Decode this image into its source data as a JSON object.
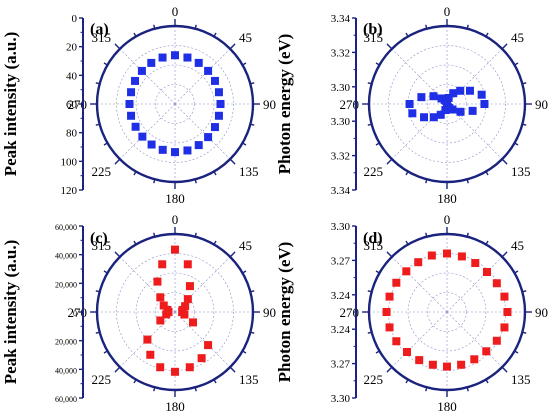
{
  "colors": {
    "axis": "#1a237e",
    "grid": "#8a8fc7",
    "blue": "#1f2fe6",
    "red": "#ee1c1c"
  },
  "chart_data": [
    {
      "type": "polar-scatter",
      "panel_label": "(a)",
      "ylabel": "Peak intensity (a.u.)",
      "rlim": [
        0,
        120
      ],
      "radial_ticks": [
        "0",
        "20",
        "40",
        "60",
        "80",
        "100",
        "120"
      ],
      "angle_labels": [
        "0",
        "45",
        "90",
        "135",
        "180",
        "225",
        "270",
        "315"
      ],
      "color": "blue",
      "points": [
        {
          "theta": 0,
          "r": 75
        },
        {
          "theta": 15,
          "r": 74
        },
        {
          "theta": 30,
          "r": 73
        },
        {
          "theta": 45,
          "r": 72
        },
        {
          "theta": 60,
          "r": 71
        },
        {
          "theta": 75,
          "r": 70
        },
        {
          "theta": 90,
          "r": 70
        },
        {
          "theta": 105,
          "r": 70
        },
        {
          "theta": 120,
          "r": 71
        },
        {
          "theta": 135,
          "r": 72
        },
        {
          "theta": 150,
          "r": 73
        },
        {
          "theta": 165,
          "r": 74
        },
        {
          "theta": 180,
          "r": 74
        },
        {
          "theta": 195,
          "r": 73
        },
        {
          "theta": 210,
          "r": 72
        },
        {
          "theta": 225,
          "r": 71
        },
        {
          "theta": 240,
          "r": 70
        },
        {
          "theta": 255,
          "r": 70
        },
        {
          "theta": 270,
          "r": 70
        },
        {
          "theta": 285,
          "r": 70
        },
        {
          "theta": 300,
          "r": 71
        },
        {
          "theta": 315,
          "r": 72
        },
        {
          "theta": 330,
          "r": 73
        },
        {
          "theta": 345,
          "r": 74
        }
      ]
    },
    {
      "type": "polar-scatter",
      "panel_label": "(b)",
      "ylabel": "Photon energy (eV)",
      "rlim": [
        3.295,
        3.345
      ],
      "radial_ticks": [
        "3.34",
        "3.32",
        "3.30",
        "3.30",
        "3.32",
        "3.34"
      ],
      "angle_labels": [
        "0",
        "45",
        "90",
        "135",
        "180",
        "225",
        "270",
        "315"
      ],
      "color": "blue",
      "points": [
        {
          "theta": 0,
          "r": 3.297
        },
        {
          "theta": 15,
          "r": 3.299
        },
        {
          "theta": 30,
          "r": 3.303
        },
        {
          "theta": 45,
          "r": 3.307
        },
        {
          "theta": 60,
          "r": 3.312
        },
        {
          "theta": 75,
          "r": 3.318
        },
        {
          "theta": 90,
          "r": 3.319
        },
        {
          "theta": 105,
          "r": 3.312
        },
        {
          "theta": 120,
          "r": 3.305
        },
        {
          "theta": 135,
          "r": 3.3
        },
        {
          "theta": 150,
          "r": 3.298
        },
        {
          "theta": 165,
          "r": 3.297
        },
        {
          "theta": 180,
          "r": 3.297
        },
        {
          "theta": 195,
          "r": 3.299
        },
        {
          "theta": 210,
          "r": 3.303
        },
        {
          "theta": 225,
          "r": 3.307
        },
        {
          "theta": 240,
          "r": 3.312
        },
        {
          "theta": 255,
          "r": 3.318
        },
        {
          "theta": 270,
          "r": 3.319
        },
        {
          "theta": 285,
          "r": 3.312
        },
        {
          "theta": 300,
          "r": 3.305
        },
        {
          "theta": 315,
          "r": 3.3
        },
        {
          "theta": 330,
          "r": 3.298
        },
        {
          "theta": 345,
          "r": 3.297
        }
      ]
    },
    {
      "type": "polar-scatter",
      "panel_label": "(c)",
      "ylabel": "Peak intensity (a.u.)",
      "rlim": [
        0,
        60000
      ],
      "radial_ticks": [
        "60,000",
        "40,000",
        "20,000",
        "0",
        "20,000",
        "40,000",
        "60,000"
      ],
      "angle_labels": [
        "0",
        "45",
        "90",
        "135",
        "180",
        "225",
        "270",
        "315"
      ],
      "color": "red",
      "points": [
        {
          "theta": 0,
          "r": 48000
        },
        {
          "theta": 15,
          "r": 38000
        },
        {
          "theta": 30,
          "r": 23000
        },
        {
          "theta": 45,
          "r": 14000
        },
        {
          "theta": 60,
          "r": 9000
        },
        {
          "theta": 75,
          "r": 6000
        },
        {
          "theta": 90,
          "r": 5500
        },
        {
          "theta": 105,
          "r": 7500
        },
        {
          "theta": 120,
          "r": 16000
        },
        {
          "theta": 135,
          "r": 36000
        },
        {
          "theta": 150,
          "r": 41000
        },
        {
          "theta": 165,
          "r": 44000
        },
        {
          "theta": 180,
          "r": 46000
        },
        {
          "theta": 195,
          "r": 44000
        },
        {
          "theta": 210,
          "r": 38000
        },
        {
          "theta": 225,
          "r": 30000
        },
        {
          "theta": 240,
          "r": 13000
        },
        {
          "theta": 255,
          "r": 7000
        },
        {
          "theta": 270,
          "r": 5000
        },
        {
          "theta": 285,
          "r": 6000
        },
        {
          "theta": 300,
          "r": 10000
        },
        {
          "theta": 315,
          "r": 16000
        },
        {
          "theta": 330,
          "r": 27000
        },
        {
          "theta": 345,
          "r": 38000
        }
      ]
    },
    {
      "type": "polar-scatter",
      "panel_label": "(d)",
      "ylabel": "Photon energy (eV)",
      "rlim": [
        3.225,
        3.305
      ],
      "radial_ticks": [
        "3.30",
        "3.27",
        "3.24",
        "3.24",
        "3.27",
        "3.30"
      ],
      "angle_labels": [
        "0",
        "45",
        "90",
        "135",
        "180",
        "225",
        "270",
        "315"
      ],
      "color": "red",
      "points": [
        {
          "theta": 0,
          "r": 3.285
        },
        {
          "theta": 15,
          "r": 3.284
        },
        {
          "theta": 30,
          "r": 3.283
        },
        {
          "theta": 45,
          "r": 3.283
        },
        {
          "theta": 60,
          "r": 3.284
        },
        {
          "theta": 75,
          "r": 3.286
        },
        {
          "theta": 90,
          "r": 3.287
        },
        {
          "theta": 105,
          "r": 3.286
        },
        {
          "theta": 120,
          "r": 3.284
        },
        {
          "theta": 135,
          "r": 3.282
        },
        {
          "theta": 150,
          "r": 3.281
        },
        {
          "theta": 165,
          "r": 3.281
        },
        {
          "theta": 180,
          "r": 3.281
        },
        {
          "theta": 195,
          "r": 3.281
        },
        {
          "theta": 210,
          "r": 3.282
        },
        {
          "theta": 225,
          "r": 3.283
        },
        {
          "theta": 240,
          "r": 3.285
        },
        {
          "theta": 255,
          "r": 3.286
        },
        {
          "theta": 270,
          "r": 3.287
        },
        {
          "theta": 285,
          "r": 3.286
        },
        {
          "theta": 300,
          "r": 3.285
        },
        {
          "theta": 315,
          "r": 3.284
        },
        {
          "theta": 330,
          "r": 3.284
        },
        {
          "theta": 345,
          "r": 3.285
        }
      ]
    }
  ]
}
